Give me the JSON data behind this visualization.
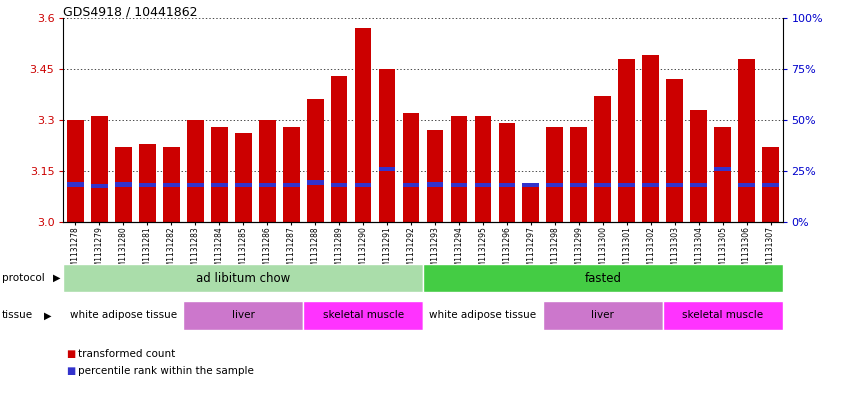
{
  "title": "GDS4918 / 10441862",
  "samples": [
    "GSM1131278",
    "GSM1131279",
    "GSM1131280",
    "GSM1131281",
    "GSM1131282",
    "GSM1131283",
    "GSM1131284",
    "GSM1131285",
    "GSM1131286",
    "GSM1131287",
    "GSM1131288",
    "GSM1131289",
    "GSM1131290",
    "GSM1131291",
    "GSM1131292",
    "GSM1131293",
    "GSM1131294",
    "GSM1131295",
    "GSM1131296",
    "GSM1131297",
    "GSM1131298",
    "GSM1131299",
    "GSM1131300",
    "GSM1131301",
    "GSM1131302",
    "GSM1131303",
    "GSM1131304",
    "GSM1131305",
    "GSM1131306",
    "GSM1131307"
  ],
  "bar_heights": [
    3.3,
    3.31,
    3.22,
    3.23,
    3.22,
    3.3,
    3.28,
    3.26,
    3.3,
    3.28,
    3.36,
    3.43,
    3.57,
    3.45,
    3.32,
    3.27,
    3.31,
    3.31,
    3.29,
    3.11,
    3.28,
    3.28,
    3.37,
    3.48,
    3.49,
    3.42,
    3.33,
    3.28,
    3.48,
    3.22
  ],
  "blue_marker_heights": [
    3.11,
    3.105,
    3.11,
    3.108,
    3.108,
    3.108,
    3.108,
    3.108,
    3.108,
    3.108,
    3.115,
    3.108,
    3.108,
    3.155,
    3.108,
    3.11,
    3.108,
    3.108,
    3.108,
    3.108,
    3.108,
    3.108,
    3.108,
    3.108,
    3.108,
    3.108,
    3.108,
    3.155,
    3.108,
    3.108
  ],
  "bar_color": "#cc0000",
  "blue_color": "#3333cc",
  "ymin": 3.0,
  "ymax": 3.6,
  "yticks_left": [
    3.0,
    3.15,
    3.3,
    3.45,
    3.6
  ],
  "yticks_right_vals": [
    0,
    25,
    50,
    75,
    100
  ],
  "yticks_right_labels": [
    "0%",
    "25%",
    "50%",
    "75%",
    "100%"
  ],
  "protocol_groups": [
    {
      "label": "ad libitum chow",
      "start": 0,
      "end": 14,
      "color": "#aaddaa"
    },
    {
      "label": "fasted",
      "start": 15,
      "end": 29,
      "color": "#44cc44"
    }
  ],
  "tissue_groups": [
    {
      "label": "white adipose tissue",
      "start": 0,
      "end": 4,
      "color": "#ffffff"
    },
    {
      "label": "liver",
      "start": 5,
      "end": 9,
      "color": "#dd88dd"
    },
    {
      "label": "skeletal muscle",
      "start": 10,
      "end": 14,
      "color": "#ff44ff"
    },
    {
      "label": "white adipose tissue",
      "start": 15,
      "end": 19,
      "color": "#ffffff"
    },
    {
      "label": "liver",
      "start": 20,
      "end": 24,
      "color": "#dd88dd"
    },
    {
      "label": "skeletal muscle",
      "start": 25,
      "end": 29,
      "color": "#ff44ff"
    }
  ],
  "axis_color_left": "#cc0000",
  "axis_color_right": "#0000cc",
  "grid_color": "#000000",
  "bar_width": 0.7
}
